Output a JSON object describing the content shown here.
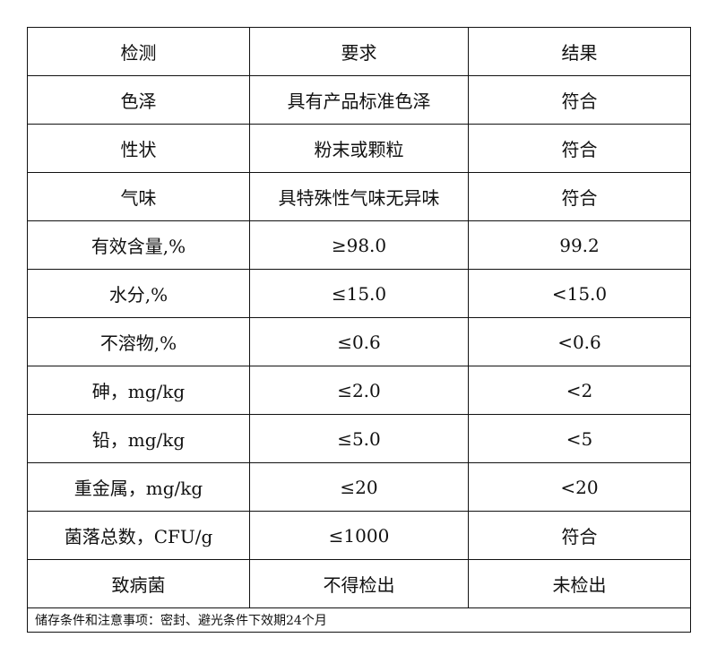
{
  "header": [
    "检测",
    "要求",
    "结果"
  ],
  "rows": [
    [
      "色泽",
      "具有产品标准色泽",
      "符合"
    ],
    [
      "性状",
      "粉末或颗粒",
      "符合"
    ],
    [
      "气味",
      "具特殊性气味无异味",
      "符合"
    ],
    [
      "有效含量,%",
      "≥98.0",
      "99.2"
    ],
    [
      "水分,%",
      "≤15.0",
      "<15.0"
    ],
    [
      "不溶物,%",
      "≤0.6",
      "<0.6"
    ],
    [
      "砷，mg/kg",
      "≤2.0",
      "<2"
    ],
    [
      "铅，mg/kg",
      "≤5.0",
      "<5"
    ],
    [
      "重金属，mg/kg",
      "≤20",
      "<20"
    ],
    [
      "菌落总数，CFU/g",
      "≤1000",
      "符合"
    ],
    [
      "致病菌",
      "不得检出",
      "未检出"
    ]
  ],
  "note": "储存条件和注意事项：密封、避光条件下效期24个月"
}
